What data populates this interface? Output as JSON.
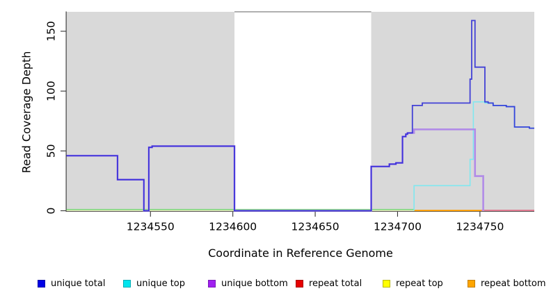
{
  "chart_data": {
    "type": "line",
    "step": true,
    "title": "",
    "xlabel": "Coordinate in Reference Genome",
    "ylabel": "Read Coverage Depth",
    "xlim": [
      1234499,
      1234783
    ],
    "ylim": [
      0,
      166
    ],
    "x_ticks": [
      1234550,
      1234600,
      1234650,
      1234700,
      1234750
    ],
    "y_ticks": [
      0,
      50,
      100,
      150
    ],
    "grid": false,
    "background_color": "#ffffff",
    "highlight_regions": [
      {
        "name": "shaded-region-left",
        "from": 1234499,
        "to": 1234601,
        "color": "#d9d9d9"
      },
      {
        "name": "shaded-region-right",
        "from": 1234684,
        "to": 1234783,
        "color": "#d9d9d9"
      }
    ],
    "series": [
      {
        "name": "unique top",
        "color": "#7fe8f0",
        "width": 1.6,
        "opacity": 1,
        "points": [
          [
            1234710,
            0
          ],
          [
            1234710,
            21
          ],
          [
            1234744,
            43
          ],
          [
            1234746,
            91
          ],
          [
            1234753,
            90
          ],
          [
            1234758,
            88
          ],
          [
            1234766,
            87
          ],
          [
            1234771,
            70
          ],
          [
            1234780,
            69
          ],
          [
            1234783,
            69
          ]
        ]
      },
      {
        "name": "unique bottom",
        "color": "#b18be8",
        "width": 2.6,
        "opacity": 1,
        "points": [
          [
            1234499,
            46
          ],
          [
            1234530,
            26
          ],
          [
            1234546,
            0
          ],
          [
            1234549,
            53
          ],
          [
            1234551,
            54
          ],
          [
            1234601,
            0
          ],
          [
            1234684,
            37
          ],
          [
            1234695,
            39
          ],
          [
            1234699,
            40
          ],
          [
            1234703,
            62
          ],
          [
            1234705,
            64
          ],
          [
            1234706,
            65
          ],
          [
            1234710,
            68
          ],
          [
            1234747,
            29
          ],
          [
            1234752,
            0
          ]
        ]
      },
      {
        "name": "unique total",
        "color": "#2120d6",
        "width": 1.8,
        "opacity": 0.82,
        "points": [
          [
            1234499,
            46
          ],
          [
            1234530,
            26
          ],
          [
            1234546,
            0
          ],
          [
            1234549,
            53
          ],
          [
            1234551,
            54
          ],
          [
            1234601,
            0
          ],
          [
            1234684,
            37
          ],
          [
            1234695,
            39
          ],
          [
            1234699,
            40
          ],
          [
            1234703,
            62
          ],
          [
            1234705,
            64
          ],
          [
            1234706,
            65
          ],
          [
            1234709,
            88
          ],
          [
            1234715,
            90
          ],
          [
            1234744,
            110
          ],
          [
            1234745,
            159
          ],
          [
            1234747,
            120
          ],
          [
            1234753,
            91
          ],
          [
            1234755,
            90
          ],
          [
            1234758,
            88
          ],
          [
            1234766,
            87
          ],
          [
            1234771,
            70
          ],
          [
            1234780,
            69
          ],
          [
            1234783,
            69
          ]
        ]
      }
    ],
    "zero_level_lines": [
      {
        "name": "repeat-top-zero-line",
        "color": "#eee9bb",
        "from": 1234499,
        "to": 1234712,
        "value": 0,
        "dy": -0.3,
        "width": 1.4
      },
      {
        "name": "green-zero-line",
        "color": "#85d985",
        "from": 1234499,
        "to": 1234710,
        "value": 0,
        "dy": -1.7,
        "width": 1.8
      },
      {
        "name": "repeat-bottom-zero-line",
        "color": "#ff9f00",
        "from": 1234710,
        "to": 1234751,
        "value": 0,
        "dy": -0.4,
        "width": 2.0
      },
      {
        "name": "repeat-total-zero-line",
        "color": "#e0637f",
        "from": 1234751,
        "to": 1234783,
        "value": 0,
        "dy": -0.6,
        "width": 1.6
      }
    ],
    "legend": {
      "position": "bottom",
      "items": [
        {
          "label": "unique total",
          "fill": "#0000e6",
          "border": "#0000a8"
        },
        {
          "label": "unique top",
          "fill": "#00e5ee",
          "border": "#00acb3"
        },
        {
          "label": "unique bottom",
          "fill": "#a020f0",
          "border": "#7a18b8"
        },
        {
          "label": "repeat total",
          "fill": "#e60000",
          "border": "#a80000"
        },
        {
          "label": "repeat top",
          "fill": "#ffff00",
          "border": "#b8b800"
        },
        {
          "label": "repeat bottom",
          "fill": "#ffa500",
          "border": "#c27d00"
        }
      ]
    }
  }
}
